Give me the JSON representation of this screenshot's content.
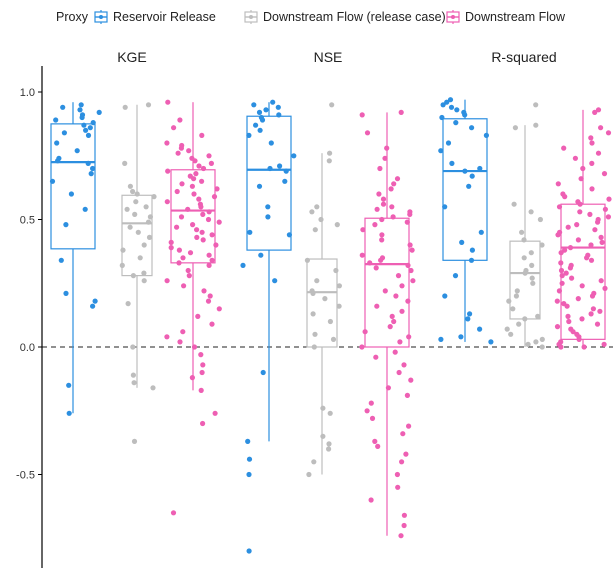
{
  "chart_data": {
    "type": "box",
    "legend": {
      "title": "Proxy",
      "placement": "top",
      "entries": [
        {
          "name": "Reservoir Release",
          "color": "#2c8fe0"
        },
        {
          "name": "Downstream Flow (release case)",
          "color": "#bdbdbd"
        },
        {
          "name": "Downstream Flow",
          "color": "#ee5fb3"
        }
      ]
    },
    "ylim": [
      -0.85,
      1.04
    ],
    "yticks": [
      -0.5,
      0.0,
      0.5,
      1.0
    ],
    "ytick_labels": [
      "-0.5",
      "0.0",
      "0.5",
      "1.0"
    ],
    "reference_line": {
      "y": 0.0,
      "style": "dashed"
    },
    "grid": false,
    "panels": [
      {
        "name": "KGE",
        "boxes": [
          {
            "series": "Reservoir Release",
            "q1": 0.385,
            "median": 0.725,
            "q3": 0.875,
            "whisker_low": -0.26,
            "whisker_high": 0.96,
            "points": [
              0.95,
              0.94,
              0.93,
              0.92,
              0.91,
              0.9,
              0.89,
              0.88,
              0.87,
              0.86,
              0.85,
              0.84,
              0.83,
              0.8,
              0.77,
              0.74,
              0.73,
              0.72,
              0.7,
              0.68,
              0.65,
              0.6,
              0.54,
              0.48,
              0.34,
              0.21,
              0.18,
              0.16,
              -0.15,
              -0.26
            ]
          },
          {
            "series": "Downstream Flow (release case)",
            "q1": 0.28,
            "median": 0.485,
            "q3": 0.595,
            "whisker_low": -0.16,
            "whisker_high": 0.95,
            "points": [
              0.95,
              0.94,
              0.72,
              0.63,
              0.61,
              0.6,
              0.59,
              0.57,
              0.55,
              0.54,
              0.52,
              0.51,
              0.49,
              0.47,
              0.45,
              0.43,
              0.4,
              0.38,
              0.35,
              0.32,
              0.29,
              0.28,
              0.26,
              0.17,
              0.0,
              -0.11,
              -0.14,
              -0.16,
              -0.37
            ]
          },
          {
            "series": "Downstream Flow",
            "q1": 0.33,
            "median": 0.535,
            "q3": 0.695,
            "whisker_low": -0.17,
            "whisker_high": 0.96,
            "points": [
              0.96,
              0.89,
              0.86,
              0.83,
              0.8,
              0.79,
              0.78,
              0.77,
              0.76,
              0.75,
              0.74,
              0.73,
              0.72,
              0.71,
              0.7,
              0.69,
              0.68,
              0.67,
              0.66,
              0.65,
              0.64,
              0.63,
              0.62,
              0.61,
              0.6,
              0.59,
              0.58,
              0.57,
              0.56,
              0.55,
              0.54,
              0.53,
              0.52,
              0.51,
              0.5,
              0.49,
              0.48,
              0.47,
              0.46,
              0.45,
              0.44,
              0.43,
              0.42,
              0.41,
              0.4,
              0.39,
              0.38,
              0.37,
              0.36,
              0.35,
              0.34,
              0.33,
              0.32,
              0.3,
              0.28,
              0.26,
              0.24,
              0.22,
              0.2,
              0.18,
              0.15,
              0.12,
              0.09,
              0.06,
              0.04,
              0.02,
              0.0,
              -0.03,
              -0.07,
              -0.1,
              -0.12,
              -0.17,
              -0.26,
              -0.3,
              -0.65
            ]
          }
        ]
      },
      {
        "name": "NSE",
        "boxes": [
          {
            "series": "Reservoir Release",
            "q1": 0.38,
            "median": 0.695,
            "q3": 0.905,
            "whisker_low": -0.37,
            "whisker_high": 0.96,
            "points": [
              0.96,
              0.95,
              0.94,
              0.93,
              0.92,
              0.91,
              0.9,
              0.89,
              0.87,
              0.85,
              0.83,
              0.8,
              0.75,
              0.71,
              0.7,
              0.69,
              0.65,
              0.63,
              0.55,
              0.51,
              0.45,
              0.44,
              0.36,
              0.32,
              0.26,
              -0.1,
              -0.37,
              -0.44,
              -0.5,
              -0.8
            ]
          },
          {
            "series": "Downstream Flow (release case)",
            "q1": 0.0,
            "median": 0.215,
            "q3": 0.345,
            "whisker_low": -0.5,
            "whisker_high": 0.76,
            "points": [
              0.95,
              0.76,
              0.73,
              0.55,
              0.53,
              0.5,
              0.48,
              0.46,
              0.34,
              0.3,
              0.26,
              0.24,
              0.22,
              0.21,
              0.19,
              0.16,
              0.13,
              0.1,
              0.05,
              0.03,
              0.0,
              -0.24,
              -0.26,
              -0.35,
              -0.38,
              -0.4,
              -0.45,
              -0.5
            ]
          },
          {
            "series": "Downstream Flow",
            "q1": 0.0,
            "median": 0.325,
            "q3": 0.505,
            "whisker_low": -0.74,
            "whisker_high": 0.92,
            "points": [
              0.92,
              0.91,
              0.84,
              0.78,
              0.74,
              0.7,
              0.66,
              0.64,
              0.62,
              0.6,
              0.58,
              0.56,
              0.55,
              0.54,
              0.53,
              0.52,
              0.51,
              0.5,
              0.49,
              0.48,
              0.46,
              0.44,
              0.42,
              0.4,
              0.38,
              0.36,
              0.35,
              0.34,
              0.33,
              0.32,
              0.31,
              0.3,
              0.28,
              0.26,
              0.24,
              0.22,
              0.2,
              0.18,
              0.16,
              0.14,
              0.12,
              0.1,
              0.08,
              0.06,
              0.04,
              0.02,
              0.0,
              -0.02,
              -0.04,
              -0.07,
              -0.1,
              -0.13,
              -0.16,
              -0.19,
              -0.22,
              -0.25,
              -0.28,
              -0.31,
              -0.34,
              -0.37,
              -0.39,
              -0.42,
              -0.45,
              -0.5,
              -0.55,
              -0.6,
              -0.66,
              -0.7,
              -0.74
            ]
          }
        ]
      },
      {
        "name": "R-squared",
        "boxes": [
          {
            "series": "Reservoir Release",
            "q1": 0.34,
            "median": 0.69,
            "q3": 0.895,
            "whisker_low": 0.02,
            "whisker_high": 0.97,
            "points": [
              0.97,
              0.96,
              0.95,
              0.94,
              0.93,
              0.92,
              0.91,
              0.9,
              0.88,
              0.86,
              0.83,
              0.8,
              0.77,
              0.72,
              0.7,
              0.69,
              0.67,
              0.63,
              0.55,
              0.45,
              0.41,
              0.38,
              0.34,
              0.28,
              0.2,
              0.13,
              0.11,
              0.07,
              0.04,
              0.03,
              0.02
            ]
          },
          {
            "series": "Downstream Flow (release case)",
            "q1": 0.11,
            "median": 0.29,
            "q3": 0.415,
            "whisker_low": 0.0,
            "whisker_high": 0.87,
            "points": [
              0.95,
              0.87,
              0.86,
              0.56,
              0.53,
              0.5,
              0.45,
              0.42,
              0.4,
              0.37,
              0.35,
              0.32,
              0.3,
              0.29,
              0.27,
              0.25,
              0.22,
              0.2,
              0.18,
              0.15,
              0.12,
              0.11,
              0.09,
              0.07,
              0.05,
              0.03,
              0.02,
              0.01,
              0.0
            ]
          },
          {
            "series": "Downstream Flow",
            "q1": 0.03,
            "median": 0.39,
            "q3": 0.56,
            "whisker_low": 0.0,
            "whisker_high": 0.93,
            "points": [
              0.93,
              0.92,
              0.86,
              0.84,
              0.82,
              0.8,
              0.78,
              0.76,
              0.74,
              0.72,
              0.7,
              0.68,
              0.66,
              0.64,
              0.62,
              0.6,
              0.59,
              0.58,
              0.57,
              0.56,
              0.55,
              0.54,
              0.53,
              0.52,
              0.51,
              0.5,
              0.49,
              0.48,
              0.47,
              0.46,
              0.45,
              0.44,
              0.43,
              0.42,
              0.41,
              0.4,
              0.39,
              0.38,
              0.37,
              0.36,
              0.35,
              0.34,
              0.33,
              0.32,
              0.31,
              0.3,
              0.29,
              0.28,
              0.27,
              0.26,
              0.25,
              0.24,
              0.23,
              0.22,
              0.21,
              0.2,
              0.19,
              0.18,
              0.17,
              0.16,
              0.15,
              0.14,
              0.13,
              0.12,
              0.11,
              0.1,
              0.09,
              0.08,
              0.07,
              0.06,
              0.05,
              0.04,
              0.03,
              0.02,
              0.01,
              0.01,
              0.0,
              0.0
            ]
          }
        ]
      }
    ]
  }
}
